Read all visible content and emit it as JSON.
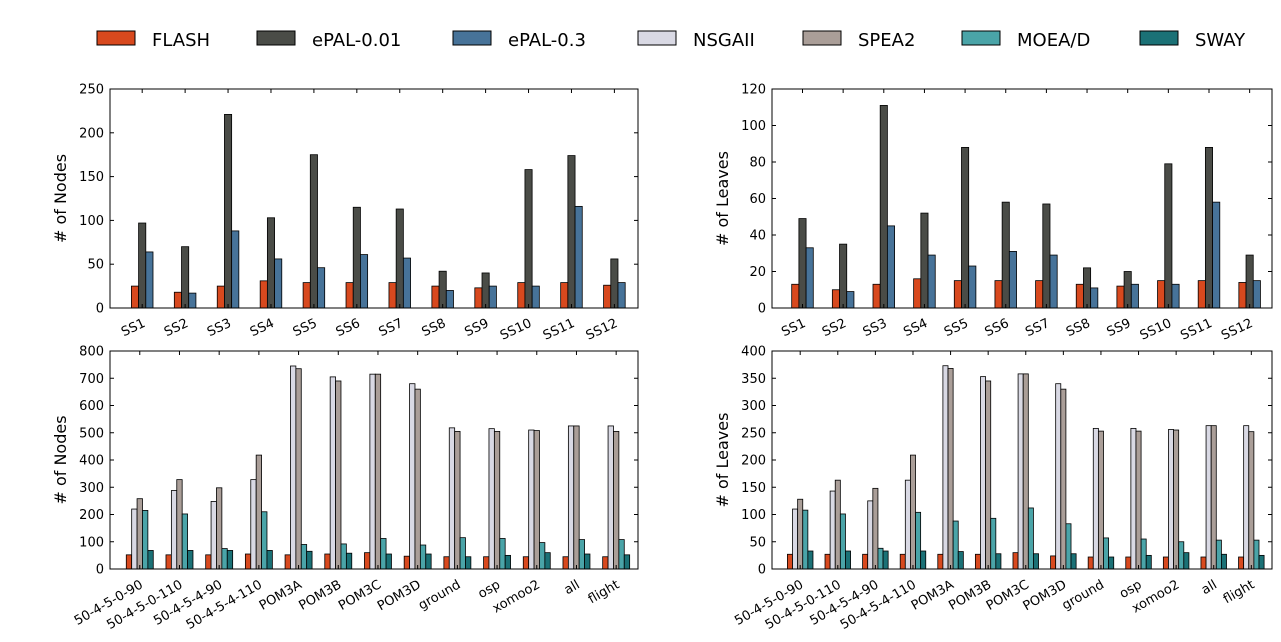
{
  "legend": {
    "items": [
      {
        "label": "FLASH",
        "color": "#d8491e"
      },
      {
        "label": "ePAL-0.01",
        "color": "#4a4c47"
      },
      {
        "label": "ePAL-0.3",
        "color": "#477399"
      },
      {
        "label": "NSGAII",
        "color": "#d9d9e4"
      },
      {
        "label": "SPEA2",
        "color": "#aa9e98"
      },
      {
        "label": "MOEA/D",
        "color": "#4aa4a8"
      },
      {
        "label": "SWAY",
        "color": "#1b7176"
      }
    ]
  },
  "chart_data": [
    {
      "type": "bar",
      "ylabel": "# of Nodes",
      "xlabel": "",
      "ylim": [
        0,
        250
      ],
      "yticks": [
        0,
        50,
        100,
        150,
        200,
        250
      ],
      "categories": [
        "SS1",
        "SS2",
        "SS3",
        "SS4",
        "SS5",
        "SS6",
        "SS7",
        "SS8",
        "SS9",
        "SS10",
        "SS11",
        "SS12"
      ],
      "series": [
        {
          "name": "FLASH",
          "values": [
            25,
            18,
            25,
            31,
            29,
            29,
            29,
            25,
            23,
            29,
            29,
            26
          ]
        },
        {
          "name": "ePAL-0.01",
          "values": [
            97,
            70,
            221,
            103,
            175,
            115,
            113,
            42,
            40,
            158,
            174,
            56
          ]
        },
        {
          "name": "ePAL-0.3",
          "values": [
            64,
            17,
            88,
            56,
            46,
            61,
            57,
            20,
            25,
            25,
            116,
            29
          ]
        }
      ]
    },
    {
      "type": "bar",
      "ylabel": "# of Leaves",
      "xlabel": "",
      "ylim": [
        0,
        120
      ],
      "yticks": [
        0,
        20,
        40,
        60,
        80,
        100,
        120
      ],
      "categories": [
        "SS1",
        "SS2",
        "SS3",
        "SS4",
        "SS5",
        "SS6",
        "SS7",
        "SS8",
        "SS9",
        "SS10",
        "SS11",
        "SS12"
      ],
      "series": [
        {
          "name": "FLASH",
          "values": [
            13,
            10,
            13,
            16,
            15,
            15,
            15,
            13,
            12,
            15,
            15,
            14
          ]
        },
        {
          "name": "ePAL-0.01",
          "values": [
            49,
            35,
            111,
            52,
            88,
            58,
            57,
            22,
            20,
            79,
            88,
            29
          ]
        },
        {
          "name": "ePAL-0.3",
          "values": [
            33,
            9,
            45,
            29,
            23,
            31,
            29,
            11,
            13,
            13,
            58,
            15
          ]
        }
      ]
    },
    {
      "type": "bar",
      "ylabel": "# of Nodes",
      "xlabel": "",
      "ylim": [
        0,
        800
      ],
      "yticks": [
        0,
        100,
        200,
        300,
        400,
        500,
        600,
        700,
        800
      ],
      "categories": [
        "50-4-5-0-90",
        "50-4-5-0-110",
        "50-4-5-4-90",
        "50-4-5-4-110",
        "POM3A",
        "POM3B",
        "POM3C",
        "POM3D",
        "ground",
        "osp",
        "xomoo2",
        "all",
        "flight"
      ],
      "series": [
        {
          "name": "FLASH",
          "values": [
            52,
            52,
            52,
            55,
            52,
            55,
            60,
            47,
            45,
            45,
            45,
            45,
            45
          ]
        },
        {
          "name": "NSGAII",
          "values": [
            220,
            288,
            248,
            328,
            745,
            705,
            715,
            680,
            518,
            515,
            510,
            525,
            525
          ]
        },
        {
          "name": "SPEA2",
          "values": [
            258,
            328,
            298,
            418,
            735,
            690,
            715,
            660,
            505,
            505,
            508,
            525,
            505
          ]
        },
        {
          "name": "MOEA/D",
          "values": [
            215,
            202,
            75,
            210,
            90,
            92,
            112,
            88,
            115,
            112,
            97,
            108,
            108
          ]
        },
        {
          "name": "SWAY",
          "values": [
            68,
            68,
            68,
            68,
            65,
            58,
            55,
            55,
            45,
            50,
            60,
            55,
            52
          ]
        }
      ]
    },
    {
      "type": "bar",
      "ylabel": "# of Leaves",
      "xlabel": "",
      "ylim": [
        0,
        400
      ],
      "yticks": [
        0,
        50,
        100,
        150,
        200,
        250,
        300,
        350,
        400
      ],
      "categories": [
        "50-4-5-0-90",
        "50-4-5-0-110",
        "50-4-5-4-90",
        "50-4-5-4-110",
        "POM3A",
        "POM3B",
        "POM3C",
        "POM3D",
        "ground",
        "osp",
        "xomoo2",
        "all",
        "flight"
      ],
      "series": [
        {
          "name": "FLASH",
          "values": [
            27,
            27,
            27,
            27,
            27,
            27,
            30,
            24,
            22,
            22,
            22,
            22,
            22
          ]
        },
        {
          "name": "NSGAII",
          "values": [
            110,
            143,
            125,
            163,
            373,
            353,
            358,
            340,
            258,
            258,
            256,
            263,
            263
          ]
        },
        {
          "name": "SPEA2",
          "values": [
            128,
            163,
            148,
            209,
            368,
            345,
            358,
            330,
            253,
            253,
            255,
            263,
            252
          ]
        },
        {
          "name": "MOEA/D",
          "values": [
            108,
            101,
            38,
            104,
            88,
            93,
            112,
            83,
            57,
            55,
            50,
            53,
            53
          ]
        },
        {
          "name": "SWAY",
          "values": [
            33,
            33,
            33,
            33,
            32,
            28,
            28,
            28,
            22,
            25,
            30,
            27,
            25
          ]
        }
      ]
    }
  ]
}
